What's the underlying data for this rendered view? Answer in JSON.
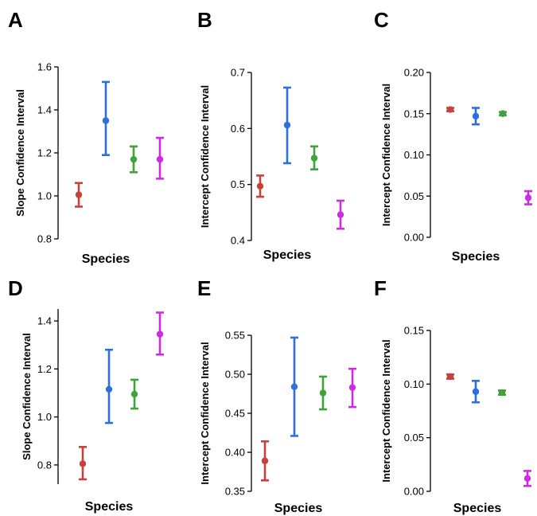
{
  "figure": {
    "colors": {
      "red": "#c8423c",
      "blue": "#2f6fdc",
      "green": "#3ea33a",
      "magenta": "#cc2de0"
    }
  },
  "chart_data": [
    {
      "panel": "A",
      "type": "scatter",
      "xlabel": "Species",
      "ylabel": "Slope Confidence Interval",
      "ylim": [
        0.8,
        1.6
      ],
      "yticks": [
        "0.8",
        "1.0",
        "1.2",
        "1.4",
        "1.6"
      ],
      "series": [
        {
          "color": "#c8423c",
          "y": 1.005,
          "low": 0.95,
          "high": 1.06
        },
        {
          "color": "#2f6fdc",
          "y": 1.35,
          "low": 1.19,
          "high": 1.53
        },
        {
          "color": "#3ea33a",
          "y": 1.17,
          "low": 1.11,
          "high": 1.23
        },
        {
          "color": "#cc2de0",
          "y": 1.17,
          "low": 1.08,
          "high": 1.27
        }
      ]
    },
    {
      "panel": "B",
      "type": "scatter",
      "xlabel": "Species",
      "ylabel": "Intercept Confidence Interval",
      "ylim": [
        0.4,
        0.7
      ],
      "yticks": [
        "0.4",
        "0.5",
        "0.6",
        "0.7"
      ],
      "series": [
        {
          "color": "#c8423c",
          "y": 0.497,
          "low": 0.478,
          "high": 0.516
        },
        {
          "color": "#2f6fdc",
          "y": 0.606,
          "low": 0.538,
          "high": 0.673
        },
        {
          "color": "#3ea33a",
          "y": 0.547,
          "low": 0.527,
          "high": 0.568
        },
        {
          "color": "#cc2de0",
          "y": 0.446,
          "low": 0.421,
          "high": 0.471
        }
      ]
    },
    {
      "panel": "C",
      "type": "scatter",
      "xlabel": "Species",
      "ylabel": "Intercept Confidence Interval",
      "ylim": [
        0.0,
        0.2
      ],
      "yticks": [
        "0.00",
        "0.05",
        "0.10",
        "0.15",
        "0.20"
      ],
      "series": [
        {
          "color": "#c8423c",
          "y": 0.155,
          "low": 0.153,
          "high": 0.157
        },
        {
          "color": "#2f6fdc",
          "y": 0.147,
          "low": 0.137,
          "high": 0.157
        },
        {
          "color": "#3ea33a",
          "y": 0.15,
          "low": 0.148,
          "high": 0.152
        },
        {
          "color": "#cc2de0",
          "y": 0.048,
          "low": 0.04,
          "high": 0.056
        }
      ]
    },
    {
      "panel": "D",
      "type": "scatter",
      "xlabel": "Species",
      "ylabel": "Slope Confidence Interval",
      "ylim": [
        0.72,
        1.45
      ],
      "yticks": [
        "0.8",
        "1.0",
        "1.2",
        "1.4"
      ],
      "series": [
        {
          "color": "#c8423c",
          "y": 0.805,
          "low": 0.74,
          "high": 0.875
        },
        {
          "color": "#2f6fdc",
          "y": 1.115,
          "low": 0.975,
          "high": 1.28
        },
        {
          "color": "#3ea33a",
          "y": 1.095,
          "low": 1.035,
          "high": 1.155
        },
        {
          "color": "#cc2de0",
          "y": 1.345,
          "low": 1.26,
          "high": 1.435
        }
      ]
    },
    {
      "panel": "E",
      "type": "scatter",
      "xlabel": "Species",
      "ylabel": "Intercept Confidence Interval",
      "ylim": [
        0.35,
        0.55
      ],
      "yticks": [
        "0.35",
        "0.40",
        "0.45",
        "0.50",
        "0.55"
      ],
      "series": [
        {
          "color": "#c8423c",
          "y": 0.389,
          "low": 0.364,
          "high": 0.414
        },
        {
          "color": "#2f6fdc",
          "y": 0.484,
          "low": 0.421,
          "high": 0.547
        },
        {
          "color": "#3ea33a",
          "y": 0.476,
          "low": 0.455,
          "high": 0.497
        },
        {
          "color": "#cc2de0",
          "y": 0.483,
          "low": 0.458,
          "high": 0.507
        }
      ]
    },
    {
      "panel": "F",
      "type": "scatter",
      "xlabel": "Species",
      "ylabel": "Intercept Confidence Interval",
      "ylim": [
        0.0,
        0.15
      ],
      "yticks": [
        "0.00",
        "0.05",
        "0.10",
        "0.15"
      ],
      "series": [
        {
          "color": "#c8423c",
          "y": 0.107,
          "low": 0.105,
          "high": 0.109
        },
        {
          "color": "#2f6fdc",
          "y": 0.093,
          "low": 0.083,
          "high": 0.103
        },
        {
          "color": "#3ea33a",
          "y": 0.092,
          "low": 0.09,
          "high": 0.094
        },
        {
          "color": "#cc2de0",
          "y": 0.012,
          "low": 0.005,
          "high": 0.019
        }
      ]
    }
  ]
}
